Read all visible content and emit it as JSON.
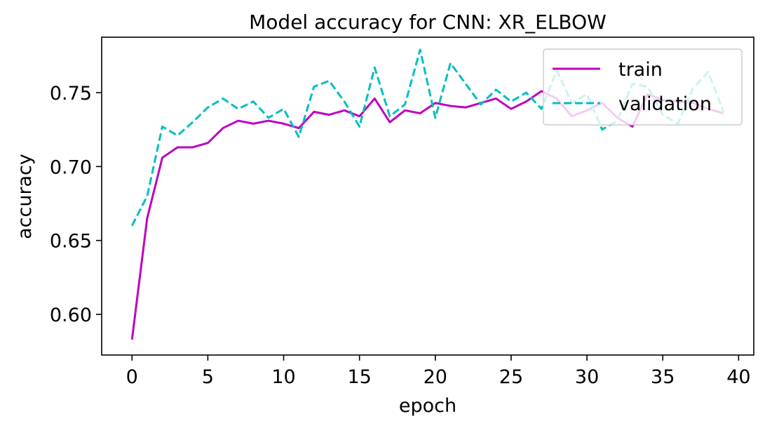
{
  "chart_data": {
    "type": "line",
    "title": "Model accuracy for CNN: XR_ELBOW",
    "xlabel": "epoch",
    "ylabel": "accuracy",
    "xlim": [
      -2,
      41
    ],
    "ylim": [
      0.5725,
      0.7875
    ],
    "xticks": [
      0,
      5,
      10,
      15,
      20,
      25,
      30,
      35,
      40
    ],
    "xtick_labels": [
      "0",
      "5",
      "10",
      "15",
      "20",
      "25",
      "30",
      "35",
      "40"
    ],
    "yticks": [
      0.6,
      0.65,
      0.7,
      0.75
    ],
    "ytick_labels": [
      "0.60",
      "0.65",
      "0.70",
      "0.75"
    ],
    "grid": false,
    "legend_position": "top-right",
    "x": [
      0,
      1,
      2,
      3,
      4,
      5,
      6,
      7,
      8,
      9,
      10,
      11,
      12,
      13,
      14,
      15,
      16,
      17,
      18,
      19,
      20,
      21,
      22,
      23,
      24,
      25,
      26,
      27,
      28,
      29,
      30,
      31,
      32,
      33,
      34,
      35,
      36,
      37,
      38,
      39
    ],
    "series": [
      {
        "name": "train",
        "color": "#bf00bf",
        "style": "solid",
        "values": [
          0.583,
          0.665,
          0.706,
          0.713,
          0.713,
          0.716,
          0.726,
          0.731,
          0.729,
          0.731,
          0.729,
          0.726,
          0.737,
          0.735,
          0.738,
          0.734,
          0.746,
          0.73,
          0.738,
          0.736,
          0.743,
          0.741,
          0.74,
          0.743,
          0.746,
          0.739,
          0.744,
          0.751,
          0.746,
          0.734,
          0.738,
          0.743,
          0.733,
          0.727,
          0.749,
          0.745,
          0.744,
          0.743,
          0.739,
          0.736
        ]
      },
      {
        "name": "validation",
        "color": "#00bfbf",
        "style": "dashed",
        "values": [
          0.66,
          0.68,
          0.727,
          0.721,
          0.73,
          0.74,
          0.746,
          0.739,
          0.744,
          0.733,
          0.739,
          0.72,
          0.754,
          0.758,
          0.744,
          0.727,
          0.767,
          0.734,
          0.742,
          0.779,
          0.733,
          0.77,
          0.756,
          0.742,
          0.752,
          0.744,
          0.75,
          0.739,
          0.765,
          0.743,
          0.749,
          0.725,
          0.731,
          0.756,
          0.754,
          0.735,
          0.729,
          0.753,
          0.764,
          0.737
        ]
      }
    ]
  }
}
